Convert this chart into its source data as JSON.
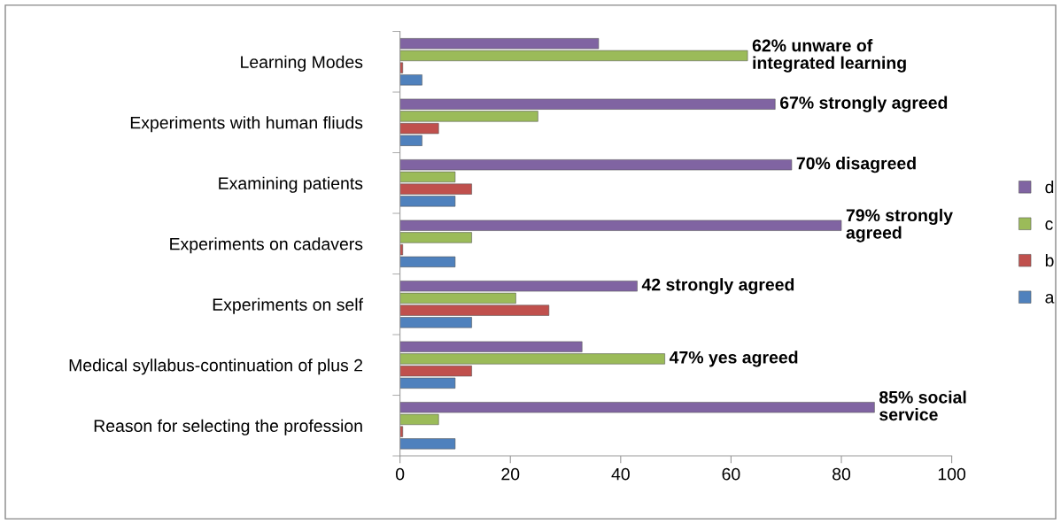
{
  "chart_data": {
    "type": "bar",
    "orientation": "horizontal",
    "categories": [
      "Learning Modes",
      "Experiments with human fliuds",
      "Examining patients",
      "Experiments on cadavers",
      "Experiments on self",
      "Medical syllabus-continuation of plus 2",
      "Reason for selecting the profession"
    ],
    "series": [
      {
        "name": "a",
        "color": "#4f81bd",
        "values": [
          4,
          4,
          10,
          10,
          13,
          10,
          10
        ]
      },
      {
        "name": "b",
        "color": "#c0504d",
        "values": [
          0.5,
          7,
          13,
          0.5,
          27,
          13,
          0.5
        ]
      },
      {
        "name": "c",
        "color": "#9bbb59",
        "values": [
          63,
          25,
          10,
          13,
          21,
          48,
          7
        ]
      },
      {
        "name": "d",
        "color": "#8064a2",
        "values": [
          36,
          68,
          71,
          80,
          43,
          33,
          86
        ]
      }
    ],
    "xlim": [
      0,
      100
    ],
    "xticks": [
      0,
      20,
      40,
      60,
      80,
      100
    ],
    "grid": false,
    "legend": "right",
    "annotations": [
      "62% unware of\nintegrated learning",
      "67% strongly agreed",
      "70% disagreed",
      "79% strongly\nagreed",
      "42 strongly agreed",
      "47% yes agreed",
      "85% social\nservice"
    ]
  }
}
